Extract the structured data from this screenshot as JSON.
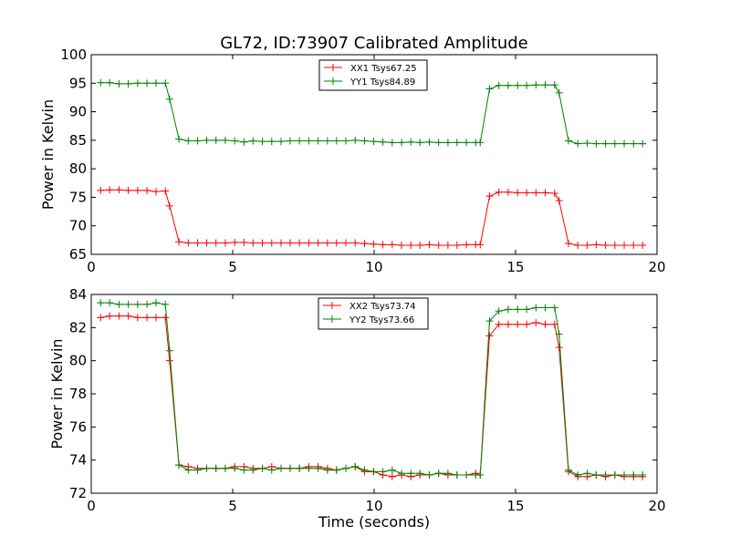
{
  "chart_data": [
    {
      "type": "line",
      "title": "GL72, ID:73907 Calibrated Amplitude",
      "xlabel": "",
      "ylabel": "Power in Kelvin",
      "xlim": [
        0,
        20
      ],
      "ylim": [
        65,
        100
      ],
      "xticks": [
        "0",
        "5",
        "10",
        "15",
        "20"
      ],
      "yticks": [
        "65",
        "70",
        "75",
        "80",
        "85",
        "90",
        "95",
        "100"
      ],
      "legend_position": "top-center",
      "grid": false,
      "x": [
        0.33,
        0.65,
        0.98,
        1.31,
        1.64,
        1.97,
        2.29,
        2.62,
        2.77,
        3.1,
        3.43,
        3.76,
        4.08,
        4.41,
        4.74,
        5.07,
        5.4,
        5.72,
        6.05,
        6.38,
        6.71,
        7.03,
        7.36,
        7.69,
        8.02,
        8.35,
        8.67,
        9.0,
        9.33,
        9.66,
        9.98,
        10.31,
        10.64,
        10.97,
        11.3,
        11.62,
        11.95,
        12.28,
        12.61,
        12.93,
        13.26,
        13.59,
        13.75,
        14.08,
        14.41,
        14.74,
        15.07,
        15.39,
        15.72,
        16.05,
        16.38,
        16.54,
        16.87,
        17.2,
        17.53,
        17.85,
        18.18,
        18.51,
        18.84,
        19.17,
        19.49
      ],
      "series": [
        {
          "name": "XX1 Tsys67.25",
          "color": "#ff0000",
          "values": [
            76.2,
            76.3,
            76.3,
            76.2,
            76.2,
            76.2,
            76.0,
            76.1,
            73.5,
            67.2,
            67.0,
            67.0,
            67.0,
            67.0,
            67.0,
            67.1,
            67.1,
            67.0,
            67.0,
            67.0,
            67.0,
            67.0,
            67.0,
            67.0,
            67.0,
            67.0,
            67.0,
            67.0,
            67.0,
            66.9,
            66.8,
            66.7,
            66.7,
            66.6,
            66.6,
            66.6,
            66.7,
            66.6,
            66.6,
            66.6,
            66.7,
            66.7,
            66.7,
            75.2,
            75.9,
            75.9,
            75.8,
            75.8,
            75.8,
            75.8,
            75.7,
            74.4,
            66.9,
            66.6,
            66.6,
            66.7,
            66.6,
            66.6,
            66.6,
            66.6,
            66.6
          ]
        },
        {
          "name": "YY1 Tsys84.89",
          "color": "#008000",
          "values": [
            95.1,
            95.1,
            94.9,
            94.9,
            95.0,
            95.0,
            95.0,
            95.0,
            92.2,
            85.2,
            84.9,
            84.9,
            85.0,
            85.0,
            85.0,
            84.9,
            84.7,
            84.9,
            84.8,
            84.8,
            84.8,
            84.9,
            84.9,
            84.9,
            84.9,
            84.9,
            84.9,
            84.9,
            85.0,
            84.9,
            84.8,
            84.7,
            84.6,
            84.6,
            84.7,
            84.6,
            84.7,
            84.6,
            84.6,
            84.6,
            84.6,
            84.6,
            84.6,
            94.0,
            94.6,
            94.6,
            94.6,
            94.6,
            94.7,
            94.7,
            94.7,
            93.3,
            84.9,
            84.4,
            84.5,
            84.4,
            84.4,
            84.4,
            84.4,
            84.4,
            84.4
          ]
        }
      ]
    },
    {
      "type": "line",
      "title": "",
      "xlabel": "Time (seconds)",
      "ylabel": "Power in Kelvin",
      "xlim": [
        0,
        20
      ],
      "ylim": [
        72,
        84
      ],
      "xticks": [
        "0",
        "5",
        "10",
        "15",
        "20"
      ],
      "yticks": [
        "72",
        "74",
        "76",
        "78",
        "80",
        "82",
        "84"
      ],
      "legend_position": "top-center",
      "grid": false,
      "x": [
        0.33,
        0.65,
        0.98,
        1.31,
        1.64,
        1.97,
        2.29,
        2.62,
        2.77,
        3.1,
        3.43,
        3.76,
        4.08,
        4.41,
        4.74,
        5.07,
        5.4,
        5.72,
        6.05,
        6.38,
        6.71,
        7.03,
        7.36,
        7.69,
        8.02,
        8.35,
        8.67,
        9.0,
        9.33,
        9.66,
        9.98,
        10.31,
        10.64,
        10.97,
        11.3,
        11.62,
        11.95,
        12.28,
        12.61,
        12.93,
        13.26,
        13.59,
        13.75,
        14.08,
        14.41,
        14.74,
        15.07,
        15.39,
        15.72,
        16.05,
        16.38,
        16.54,
        16.87,
        17.2,
        17.53,
        17.85,
        18.18,
        18.51,
        18.84,
        19.17,
        19.49
      ],
      "series": [
        {
          "name": "XX2 Tsys73.74",
          "color": "#ff0000",
          "values": [
            82.6,
            82.7,
            82.7,
            82.7,
            82.6,
            82.6,
            82.6,
            82.6,
            80.0,
            73.7,
            73.6,
            73.5,
            73.5,
            73.5,
            73.5,
            73.6,
            73.6,
            73.5,
            73.5,
            73.6,
            73.5,
            73.5,
            73.5,
            73.6,
            73.6,
            73.5,
            73.4,
            73.5,
            73.6,
            73.3,
            73.3,
            73.1,
            73.0,
            73.1,
            73.0,
            73.1,
            73.1,
            73.2,
            73.1,
            73.1,
            73.1,
            73.2,
            73.1,
            81.5,
            82.2,
            82.2,
            82.2,
            82.2,
            82.3,
            82.2,
            82.2,
            80.8,
            73.3,
            73.0,
            73.0,
            73.1,
            73.0,
            73.1,
            73.0,
            73.0,
            73.0
          ]
        },
        {
          "name": "YY2 Tsys73.66",
          "color": "#008000",
          "values": [
            83.5,
            83.5,
            83.4,
            83.4,
            83.4,
            83.4,
            83.5,
            83.4,
            80.6,
            73.7,
            73.4,
            73.4,
            73.5,
            73.5,
            73.5,
            73.5,
            73.4,
            73.4,
            73.5,
            73.4,
            73.5,
            73.5,
            73.5,
            73.5,
            73.5,
            73.4,
            73.4,
            73.5,
            73.6,
            73.4,
            73.3,
            73.3,
            73.4,
            73.2,
            73.2,
            73.2,
            73.1,
            73.2,
            73.2,
            73.1,
            73.1,
            73.1,
            73.1,
            82.4,
            83.0,
            83.1,
            83.1,
            83.1,
            83.2,
            83.2,
            83.2,
            81.6,
            73.4,
            73.1,
            73.2,
            73.1,
            73.1,
            73.1,
            73.1,
            73.1,
            73.1
          ]
        }
      ]
    }
  ]
}
